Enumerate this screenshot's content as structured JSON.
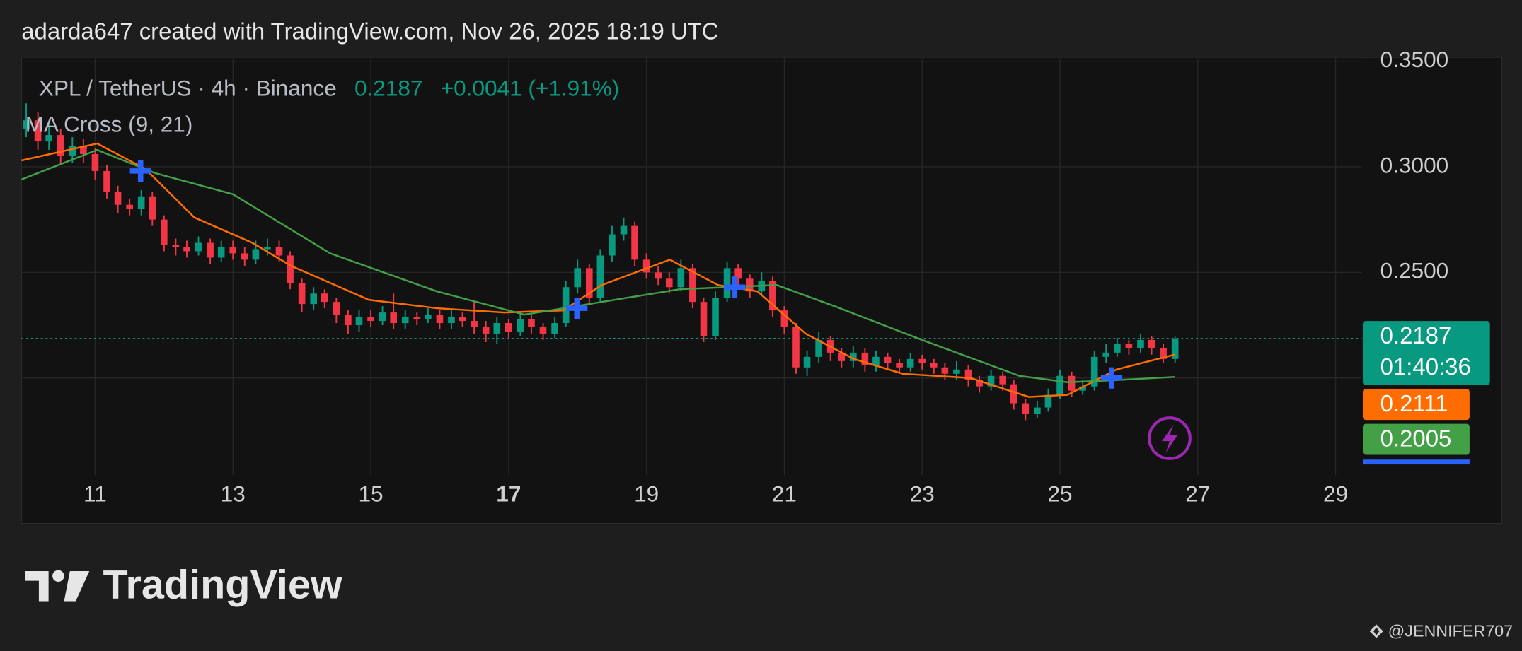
{
  "header": "adarda647 created with TradingView.com, Nov 26, 2025 18:19 UTC",
  "legend": {
    "symbol": "XPL / TetherUS · 4h · Binance",
    "price": "0.2187",
    "change": "+0.0041 (+1.91%)",
    "indicator": "MA Cross (9, 21)"
  },
  "footer": {
    "logo": "TradingView",
    "watermark": "@JENNIFER707"
  },
  "chart_data": {
    "type": "candlestick",
    "up_color": "#089981",
    "down_color": "#f23645",
    "xlim": [
      9.93,
      29.38
    ],
    "xticks": [
      11,
      13,
      15,
      17,
      19,
      21,
      23,
      25,
      27,
      29
    ],
    "xtick_bold": [
      17
    ],
    "ylim": [
      0.154,
      0.3505
    ],
    "yticks": [
      {
        "value": 0.25,
        "label": "0.2500"
      },
      {
        "value": 0.3,
        "label": "0.3000"
      },
      {
        "value": 0.35,
        "label": "0.3500"
      },
      {
        "value": 0.2,
        "label": ""
      }
    ],
    "grid": true,
    "x": [
      10,
      10.17,
      10.33,
      10.5,
      10.67,
      10.83,
      11,
      11.17,
      11.33,
      11.5,
      11.67,
      11.83,
      12,
      12.17,
      12.33,
      12.5,
      12.67,
      12.83,
      13,
      13.17,
      13.33,
      13.5,
      13.67,
      13.83,
      14,
      14.17,
      14.33,
      14.5,
      14.67,
      14.83,
      15,
      15.17,
      15.33,
      15.5,
      15.67,
      15.83,
      16,
      16.17,
      16.33,
      16.5,
      16.67,
      16.83,
      17,
      17.17,
      17.33,
      17.5,
      17.67,
      17.83,
      18,
      18.17,
      18.33,
      18.5,
      18.67,
      18.83,
      19,
      19.17,
      19.33,
      19.5,
      19.67,
      19.83,
      20,
      20.17,
      20.33,
      20.5,
      20.67,
      20.83,
      21,
      21.17,
      21.33,
      21.5,
      21.67,
      21.83,
      22,
      22.17,
      22.33,
      22.5,
      22.67,
      22.83,
      23,
      23.17,
      23.33,
      23.5,
      23.67,
      23.83,
      24,
      24.17,
      24.33,
      24.5,
      24.67,
      24.83,
      25,
      25.17,
      25.33,
      25.5,
      25.67,
      25.83,
      26,
      26.17,
      26.33,
      26.5,
      26.67
    ],
    "open": [
      0.318,
      0.322,
      0.312,
      0.315,
      0.305,
      0.31,
      0.306,
      0.298,
      0.288,
      0.282,
      0.28,
      0.286,
      0.275,
      0.263,
      0.262,
      0.26,
      0.264,
      0.257,
      0.262,
      0.259,
      0.256,
      0.261,
      0.262,
      0.258,
      0.245,
      0.235,
      0.24,
      0.236,
      0.23,
      0.225,
      0.229,
      0.227,
      0.231,
      0.226,
      0.229,
      0.228,
      0.23,
      0.226,
      0.229,
      0.227,
      0.224,
      0.221,
      0.226,
      0.222,
      0.228,
      0.224,
      0.221,
      0.226,
      0.243,
      0.252,
      0.238,
      0.258,
      0.268,
      0.272,
      0.256,
      0.25,
      0.247,
      0.243,
      0.252,
      0.236,
      0.22,
      0.238,
      0.252,
      0.247,
      0.241,
      0.246,
      0.232,
      0.224,
      0.205,
      0.21,
      0.218,
      0.212,
      0.208,
      0.212,
      0.206,
      0.21,
      0.207,
      0.205,
      0.209,
      0.207,
      0.205,
      0.202,
      0.204,
      0.199,
      0.196,
      0.201,
      0.197,
      0.188,
      0.183,
      0.186,
      0.192,
      0.201,
      0.194,
      0.196,
      0.21,
      0.212,
      0.216,
      0.214,
      0.218,
      0.214,
      0.209
    ],
    "high": [
      0.33,
      0.326,
      0.32,
      0.318,
      0.314,
      0.313,
      0.309,
      0.301,
      0.291,
      0.285,
      0.289,
      0.288,
      0.277,
      0.266,
      0.265,
      0.267,
      0.266,
      0.265,
      0.265,
      0.262,
      0.265,
      0.266,
      0.265,
      0.26,
      0.247,
      0.243,
      0.242,
      0.238,
      0.232,
      0.232,
      0.232,
      0.234,
      0.24,
      0.232,
      0.231,
      0.233,
      0.232,
      0.232,
      0.231,
      0.236,
      0.227,
      0.229,
      0.228,
      0.231,
      0.23,
      0.226,
      0.229,
      0.246,
      0.256,
      0.254,
      0.261,
      0.272,
      0.276,
      0.274,
      0.259,
      0.253,
      0.25,
      0.256,
      0.254,
      0.238,
      0.241,
      0.255,
      0.254,
      0.249,
      0.25,
      0.248,
      0.234,
      0.226,
      0.213,
      0.222,
      0.22,
      0.214,
      0.215,
      0.214,
      0.213,
      0.212,
      0.209,
      0.212,
      0.211,
      0.209,
      0.207,
      0.208,
      0.206,
      0.201,
      0.204,
      0.203,
      0.199,
      0.19,
      0.189,
      0.195,
      0.204,
      0.203,
      0.199,
      0.213,
      0.216,
      0.219,
      0.218,
      0.221,
      0.22,
      0.216,
      0.2195
    ],
    "low": [
      0.314,
      0.308,
      0.308,
      0.302,
      0.302,
      0.302,
      0.294,
      0.285,
      0.278,
      0.277,
      0.277,
      0.272,
      0.26,
      0.258,
      0.257,
      0.258,
      0.254,
      0.255,
      0.256,
      0.253,
      0.254,
      0.258,
      0.255,
      0.242,
      0.231,
      0.232,
      0.233,
      0.226,
      0.221,
      0.222,
      0.224,
      0.225,
      0.223,
      0.223,
      0.225,
      0.226,
      0.223,
      0.223,
      0.224,
      0.221,
      0.217,
      0.216,
      0.219,
      0.22,
      0.221,
      0.218,
      0.219,
      0.224,
      0.24,
      0.235,
      0.236,
      0.255,
      0.265,
      0.253,
      0.247,
      0.244,
      0.24,
      0.241,
      0.233,
      0.217,
      0.218,
      0.236,
      0.244,
      0.238,
      0.239,
      0.229,
      0.221,
      0.202,
      0.201,
      0.207,
      0.208,
      0.205,
      0.205,
      0.203,
      0.203,
      0.204,
      0.202,
      0.203,
      0.204,
      0.202,
      0.199,
      0.199,
      0.196,
      0.193,
      0.194,
      0.194,
      0.185,
      0.18,
      0.181,
      0.184,
      0.19,
      0.191,
      0.192,
      0.194,
      0.207,
      0.21,
      0.211,
      0.212,
      0.211,
      0.207,
      0.207
    ],
    "close": [
      0.322,
      0.312,
      0.315,
      0.305,
      0.31,
      0.306,
      0.298,
      0.288,
      0.282,
      0.28,
      0.286,
      0.275,
      0.263,
      0.262,
      0.26,
      0.264,
      0.257,
      0.262,
      0.259,
      0.256,
      0.261,
      0.262,
      0.258,
      0.245,
      0.235,
      0.24,
      0.236,
      0.23,
      0.225,
      0.229,
      0.227,
      0.231,
      0.226,
      0.229,
      0.228,
      0.23,
      0.226,
      0.229,
      0.227,
      0.224,
      0.221,
      0.226,
      0.222,
      0.228,
      0.224,
      0.221,
      0.226,
      0.243,
      0.252,
      0.238,
      0.258,
      0.268,
      0.272,
      0.256,
      0.25,
      0.247,
      0.243,
      0.252,
      0.236,
      0.22,
      0.238,
      0.252,
      0.247,
      0.241,
      0.246,
      0.232,
      0.224,
      0.205,
      0.21,
      0.218,
      0.212,
      0.208,
      0.212,
      0.206,
      0.21,
      0.207,
      0.205,
      0.209,
      0.207,
      0.205,
      0.202,
      0.204,
      0.199,
      0.196,
      0.201,
      0.197,
      0.188,
      0.183,
      0.186,
      0.192,
      0.201,
      0.194,
      0.196,
      0.21,
      0.212,
      0.216,
      0.214,
      0.218,
      0.214,
      0.209,
      0.2187
    ],
    "series": [
      {
        "color": "#ff6d00",
        "x": [
          9.93,
          11.03,
          11.73,
          12.44,
          13.28,
          13.85,
          14.97,
          15.96,
          16.94,
          17.79,
          18.35,
          19.34,
          20.04,
          20.61,
          21.31,
          22.01,
          22.72,
          23.7,
          24.55,
          25.11,
          25.82,
          26.67
        ],
        "values": [
          0.303,
          0.311,
          0.299,
          0.276,
          0.264,
          0.253,
          0.237,
          0.233,
          0.231,
          0.232,
          0.244,
          0.256,
          0.244,
          0.241,
          0.221,
          0.209,
          0.202,
          0.2,
          0.191,
          0.192,
          0.204,
          0.2111
        ]
      },
      {
        "color": "#43a047",
        "x": [
          9.93,
          11.03,
          11.87,
          13.0,
          14.41,
          15.96,
          17.23,
          18.35,
          19.48,
          20.89,
          21.73,
          23.0,
          24.41,
          25.11,
          25.82,
          26.67
        ],
        "values": [
          0.294,
          0.308,
          0.297,
          0.287,
          0.259,
          0.241,
          0.23,
          0.236,
          0.242,
          0.244,
          0.234,
          0.218,
          0.201,
          0.198,
          0.199,
          0.2005
        ]
      }
    ],
    "crosses": {
      "color": "#2962ff",
      "x": [
        11.66,
        17.99,
        20.28,
        25.75
      ],
      "values": [
        0.298,
        0.233,
        0.243,
        0.2
      ]
    },
    "last_price": 0.2187,
    "price_tags": [
      {
        "value": 0.2187,
        "time_left": "01:40:36",
        "color": "#089981"
      },
      {
        "value": 0.2111,
        "color": "#ff6d00"
      },
      {
        "value": 0.2005,
        "color": "#43a047"
      }
    ]
  }
}
